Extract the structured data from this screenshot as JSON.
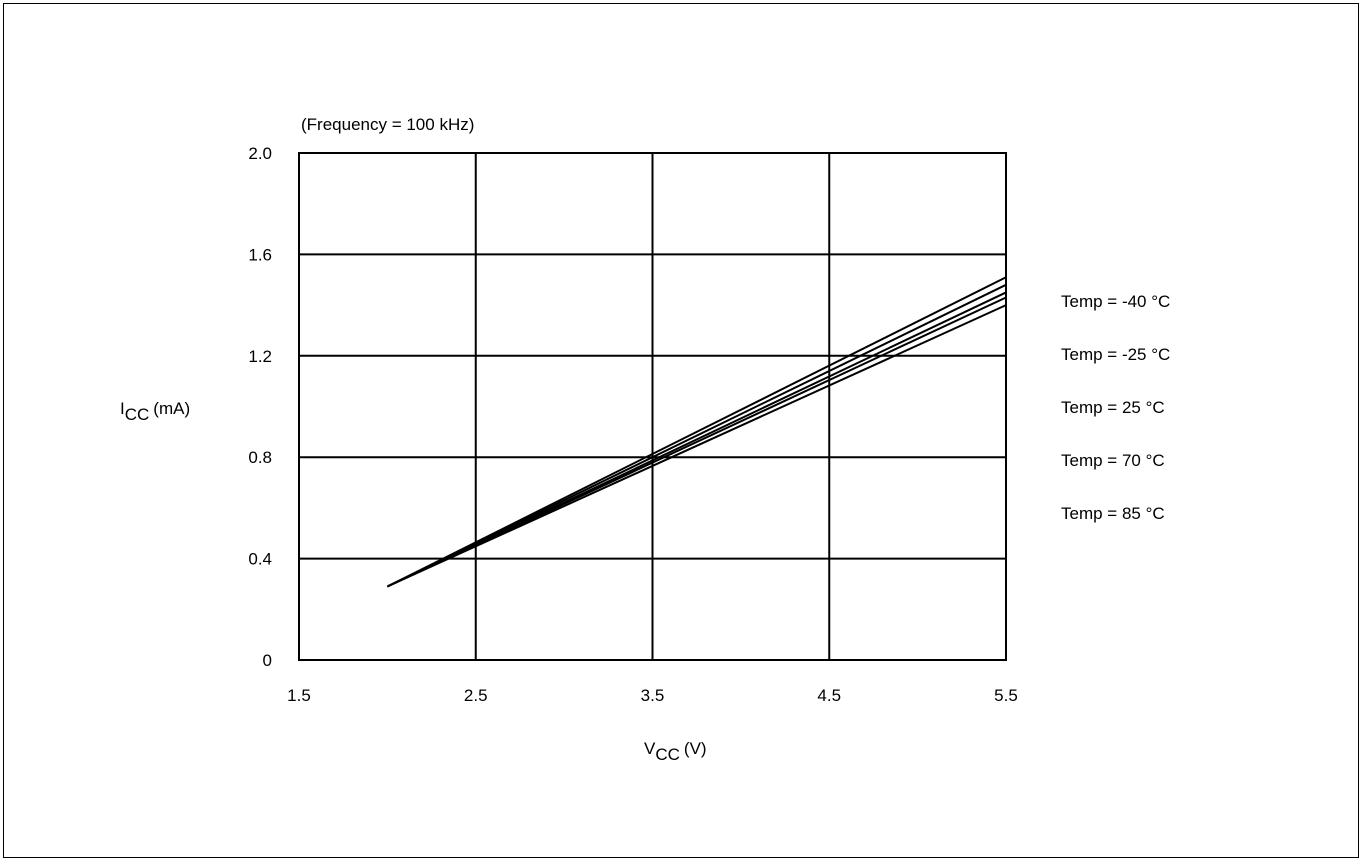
{
  "chart_data": {
    "type": "line",
    "subtitle": "(Frequency = 100 kHz)",
    "xlabel": {
      "main": "V",
      "sub": "CC",
      "unit": "(V)"
    },
    "ylabel": {
      "main": "I",
      "sub": "CC",
      "unit": "(mA)"
    },
    "xlim": [
      1.5,
      5.5
    ],
    "ylim": [
      0,
      2.0
    ],
    "x_ticks": [
      "1.5",
      "2.5",
      "3.5",
      "4.5",
      "5.5"
    ],
    "y_ticks": [
      "0",
      "0.4",
      "0.8",
      "1.2",
      "1.6",
      "2.0"
    ],
    "grid": true,
    "legend_position": "right",
    "series": [
      {
        "name": "Temp = -40 °C",
        "x": [
          2.0,
          5.5
        ],
        "y": [
          0.29,
          1.51
        ]
      },
      {
        "name": "Temp = -25 °C",
        "x": [
          2.0,
          5.5
        ],
        "y": [
          0.29,
          1.48
        ]
      },
      {
        "name": "Temp = 25 °C",
        "x": [
          2.0,
          5.5
        ],
        "y": [
          0.29,
          1.45
        ]
      },
      {
        "name": "Temp = 70 °C",
        "x": [
          2.0,
          5.5
        ],
        "y": [
          0.29,
          1.43
        ]
      },
      {
        "name": "Temp = 85 °C",
        "x": [
          2.0,
          5.5
        ],
        "y": [
          0.29,
          1.4
        ]
      }
    ],
    "line_color": "#000000"
  }
}
